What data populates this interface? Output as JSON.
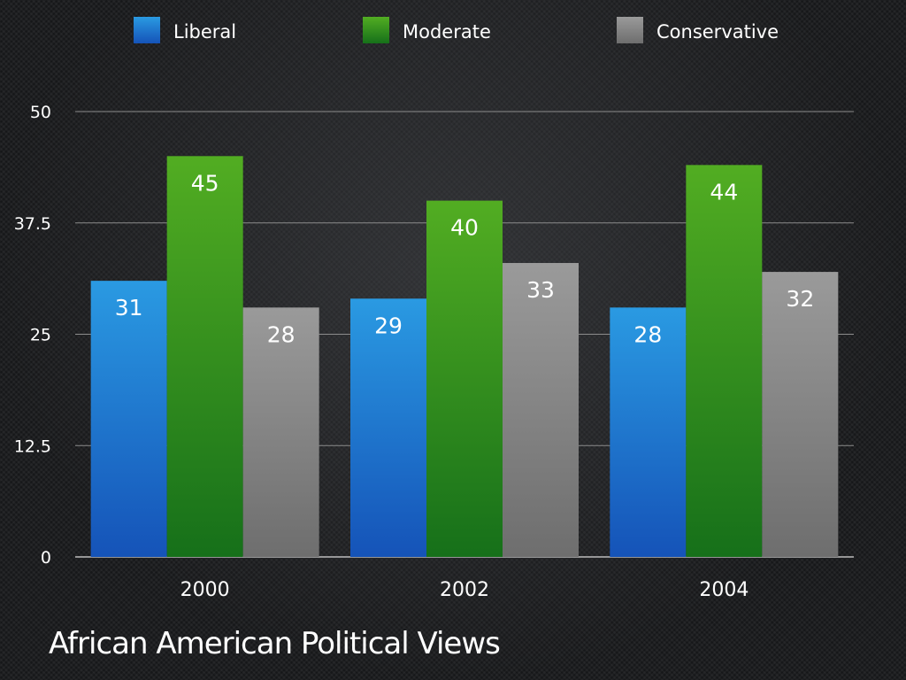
{
  "chart_data": {
    "type": "bar",
    "title": "African American Political Views",
    "categories": [
      "2000",
      "2002",
      "2004"
    ],
    "series": [
      {
        "name": "Liberal",
        "values": [
          31,
          29,
          28
        ],
        "color": "#1e78d2"
      },
      {
        "name": "Moderate",
        "values": [
          45,
          40,
          44
        ],
        "color": "#3a9a1e"
      },
      {
        "name": "Conservative",
        "values": [
          28,
          33,
          32
        ],
        "color": "#8a8a8a"
      }
    ],
    "ylim": [
      0,
      50
    ],
    "yticks": [
      "0",
      "12.5",
      "25",
      "37.5",
      "50"
    ],
    "ytick_values": [
      0,
      12.5,
      25,
      37.5,
      50
    ],
    "grid": true,
    "legend": "top",
    "xlabel": "",
    "ylabel": ""
  }
}
